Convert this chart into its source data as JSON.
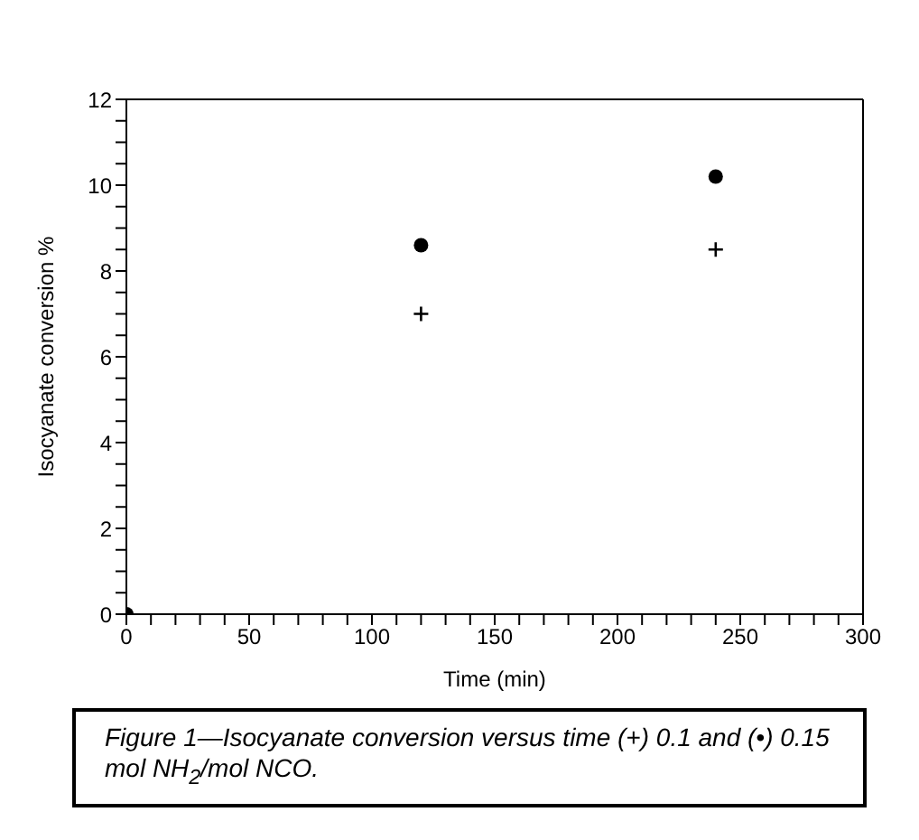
{
  "chart_data": {
    "type": "scatter",
    "xlabel": "Time (min)",
    "ylabel": "Isocyanate conversion %",
    "xlim": [
      0,
      300
    ],
    "xticks": [
      0,
      {
        "value": 10,
        "label": null
      },
      {
        "value": 20,
        "label": null
      },
      {
        "value": 30,
        "label": null
      },
      {
        "value": 40,
        "label": null
      },
      50,
      {
        "value": 60,
        "label": null
      },
      {
        "value": 70,
        "label": null
      },
      {
        "value": 80,
        "label": null
      },
      {
        "value": 90,
        "label": null
      },
      100,
      {
        "value": 110,
        "label": null
      },
      {
        "value": 120,
        "label": null
      },
      {
        "value": 130,
        "label": null
      },
      {
        "value": 140,
        "label": null
      },
      150,
      {
        "value": 160,
        "label": null
      },
      {
        "value": 170,
        "label": null
      },
      {
        "value": 180,
        "label": null
      },
      {
        "value": 190,
        "label": null
      },
      200,
      {
        "value": 210,
        "label": null
      },
      {
        "value": 220,
        "label": null
      },
      {
        "value": 230,
        "label": null
      },
      {
        "value": 240,
        "label": null
      },
      250,
      {
        "value": 260,
        "label": null
      },
      {
        "value": 270,
        "label": null
      },
      {
        "value": 280,
        "label": null
      },
      {
        "value": 290,
        "label": null
      },
      300
    ],
    "ylim": [
      0,
      12
    ],
    "yticks": [
      0,
      {
        "value": 0.5,
        "label": null
      },
      {
        "value": 1,
        "label": null
      },
      {
        "value": 1.5,
        "label": null
      },
      2,
      {
        "value": 2.5,
        "label": null
      },
      {
        "value": 3,
        "label": null
      },
      {
        "value": 3.5,
        "label": null
      },
      4,
      {
        "value": 4.5,
        "label": null
      },
      {
        "value": 5,
        "label": null
      },
      {
        "value": 5.5,
        "label": null
      },
      6,
      {
        "value": 6.5,
        "label": null
      },
      {
        "value": 7,
        "label": null
      },
      {
        "value": 7.5,
        "label": null
      },
      8,
      {
        "value": 8.5,
        "label": null
      },
      {
        "value": 9,
        "label": null
      },
      {
        "value": 9.5,
        "label": null
      },
      10,
      {
        "value": 10.5,
        "label": null
      },
      {
        "value": 11,
        "label": null
      },
      {
        "value": 11.5,
        "label": null
      },
      12
    ],
    "grid": false,
    "legend": false,
    "series": [
      {
        "color": "#000000",
        "marker": "cross",
        "x": [
          120,
          240
        ],
        "values": [
          7.0,
          8.5
        ]
      },
      {
        "color": "#000000",
        "marker": "circle",
        "x": [
          0,
          120,
          240
        ],
        "values": [
          0,
          8.6,
          10.2
        ]
      }
    ],
    "annotations": [
      "Figure 1—Isocyanate conversion versus time (+) 0.1 and (•) 0.15 mol NH$_{2}$/mol NCO."
    ]
  }
}
